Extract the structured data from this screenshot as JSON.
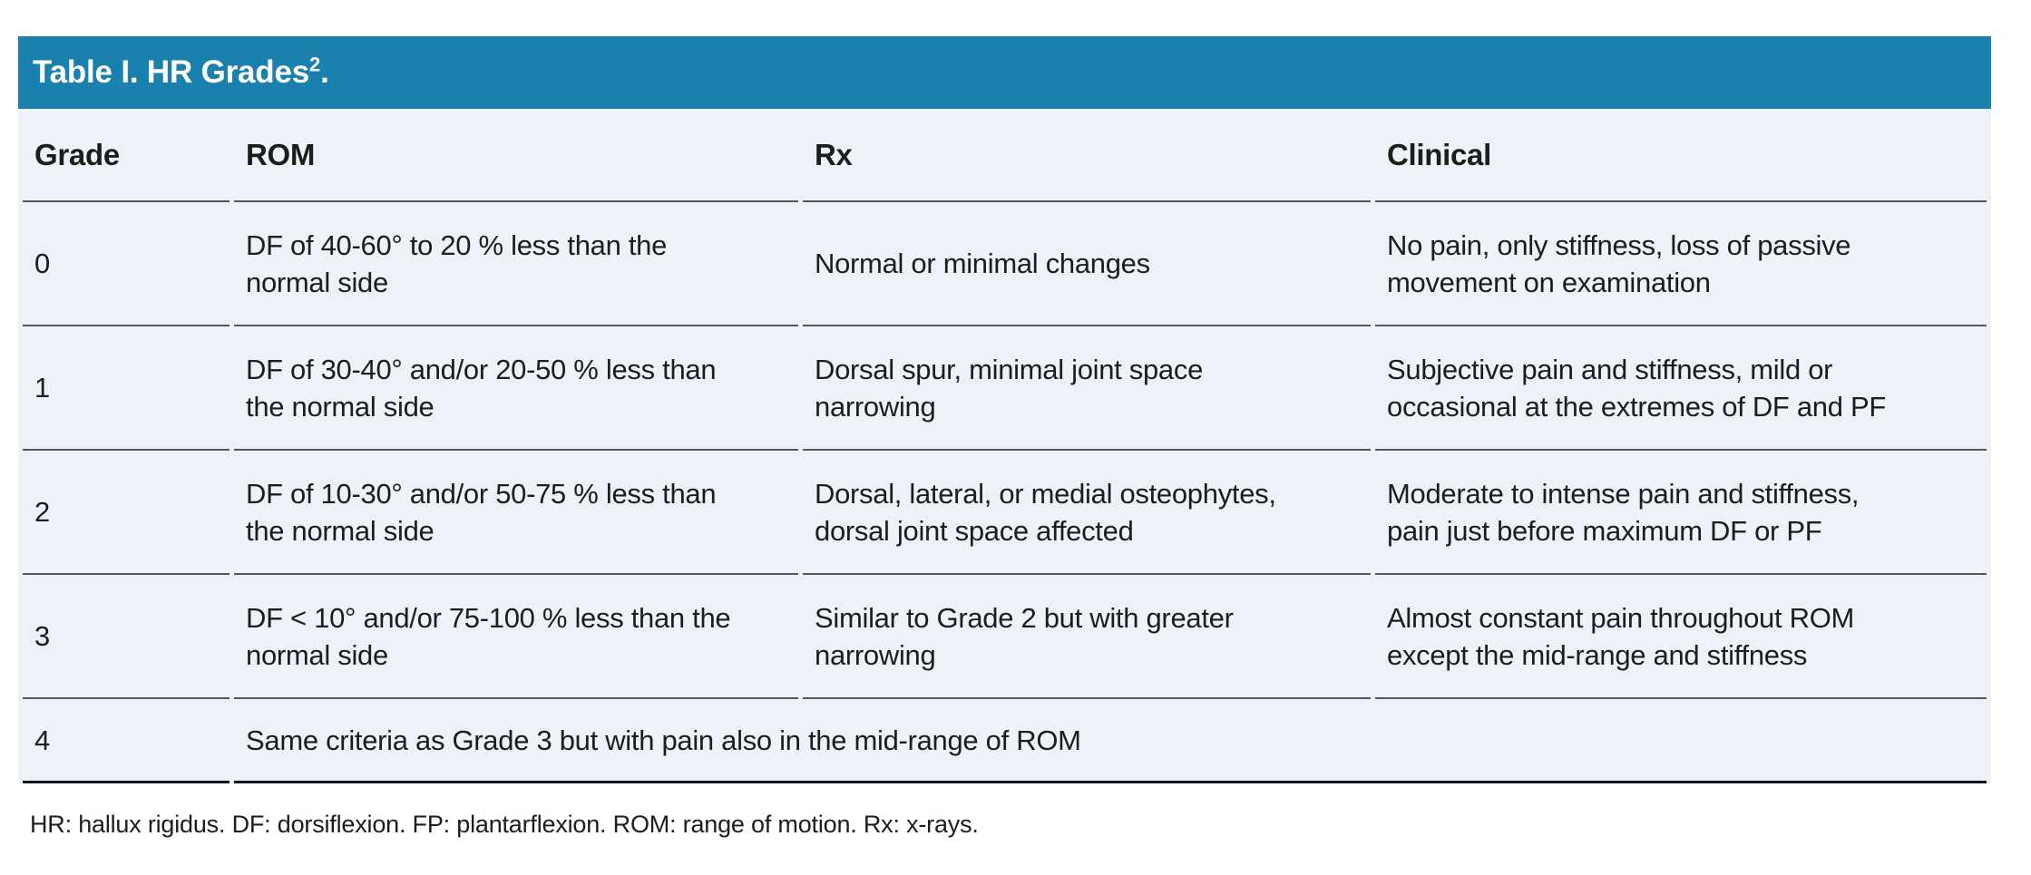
{
  "figure": {
    "title": {
      "main": "Table I. HR Grades",
      "sup": "2",
      "end": "."
    },
    "table": {
      "headers": [
        "Grade",
        "ROM",
        "Rx",
        "Clinical"
      ],
      "rows": [
        {
          "grade": "0",
          "rom": "DF of 40-60° to 20 % less than the\nnormal side",
          "rx": "Normal or minimal changes",
          "clinical": "No pain, only stiffness, loss of passive\nmovement on examination"
        },
        {
          "grade": "1",
          "rom": "DF of 30-40° and/or 20-50 % less than\nthe normal side",
          "rx": "Dorsal spur, minimal joint space\nnarrowing",
          "clinical": "Subjective pain and stiffness, mild or\noccasional at the extremes of DF and PF"
        },
        {
          "grade": "2",
          "rom": "DF of 10-30° and/or 50-75 % less than\nthe normal side",
          "rx": "Dorsal, lateral, or medial osteophytes,\ndorsal joint space affected",
          "clinical": "Moderate to intense pain and stiffness,\npain just before maximum DF or PF"
        },
        {
          "grade": "3",
          "rom": "DF < 10° and/or 75-100 % less than the\nnormal side",
          "rx": "Similar to Grade 2 but with greater\nnarrowing",
          "clinical": "Almost constant pain throughout ROM\nexcept the mid-range and stiffness"
        },
        {
          "grade": "4",
          "span": "Same criteria as Grade 3 but with pain also in the mid-range of ROM"
        }
      ]
    },
    "footnote": "HR: hallux rigidus. DF: dorsiflexion. FP: plantarflexion. ROM: range of motion. Rx: x-rays.",
    "colors": {
      "header_bar": "#1A80AD",
      "table_bg": "#EDF1F8",
      "row_border": "#54575C",
      "bottom_border": "#141619",
      "text": "#1D1D1B",
      "title_text": "#FFFFFF"
    }
  }
}
